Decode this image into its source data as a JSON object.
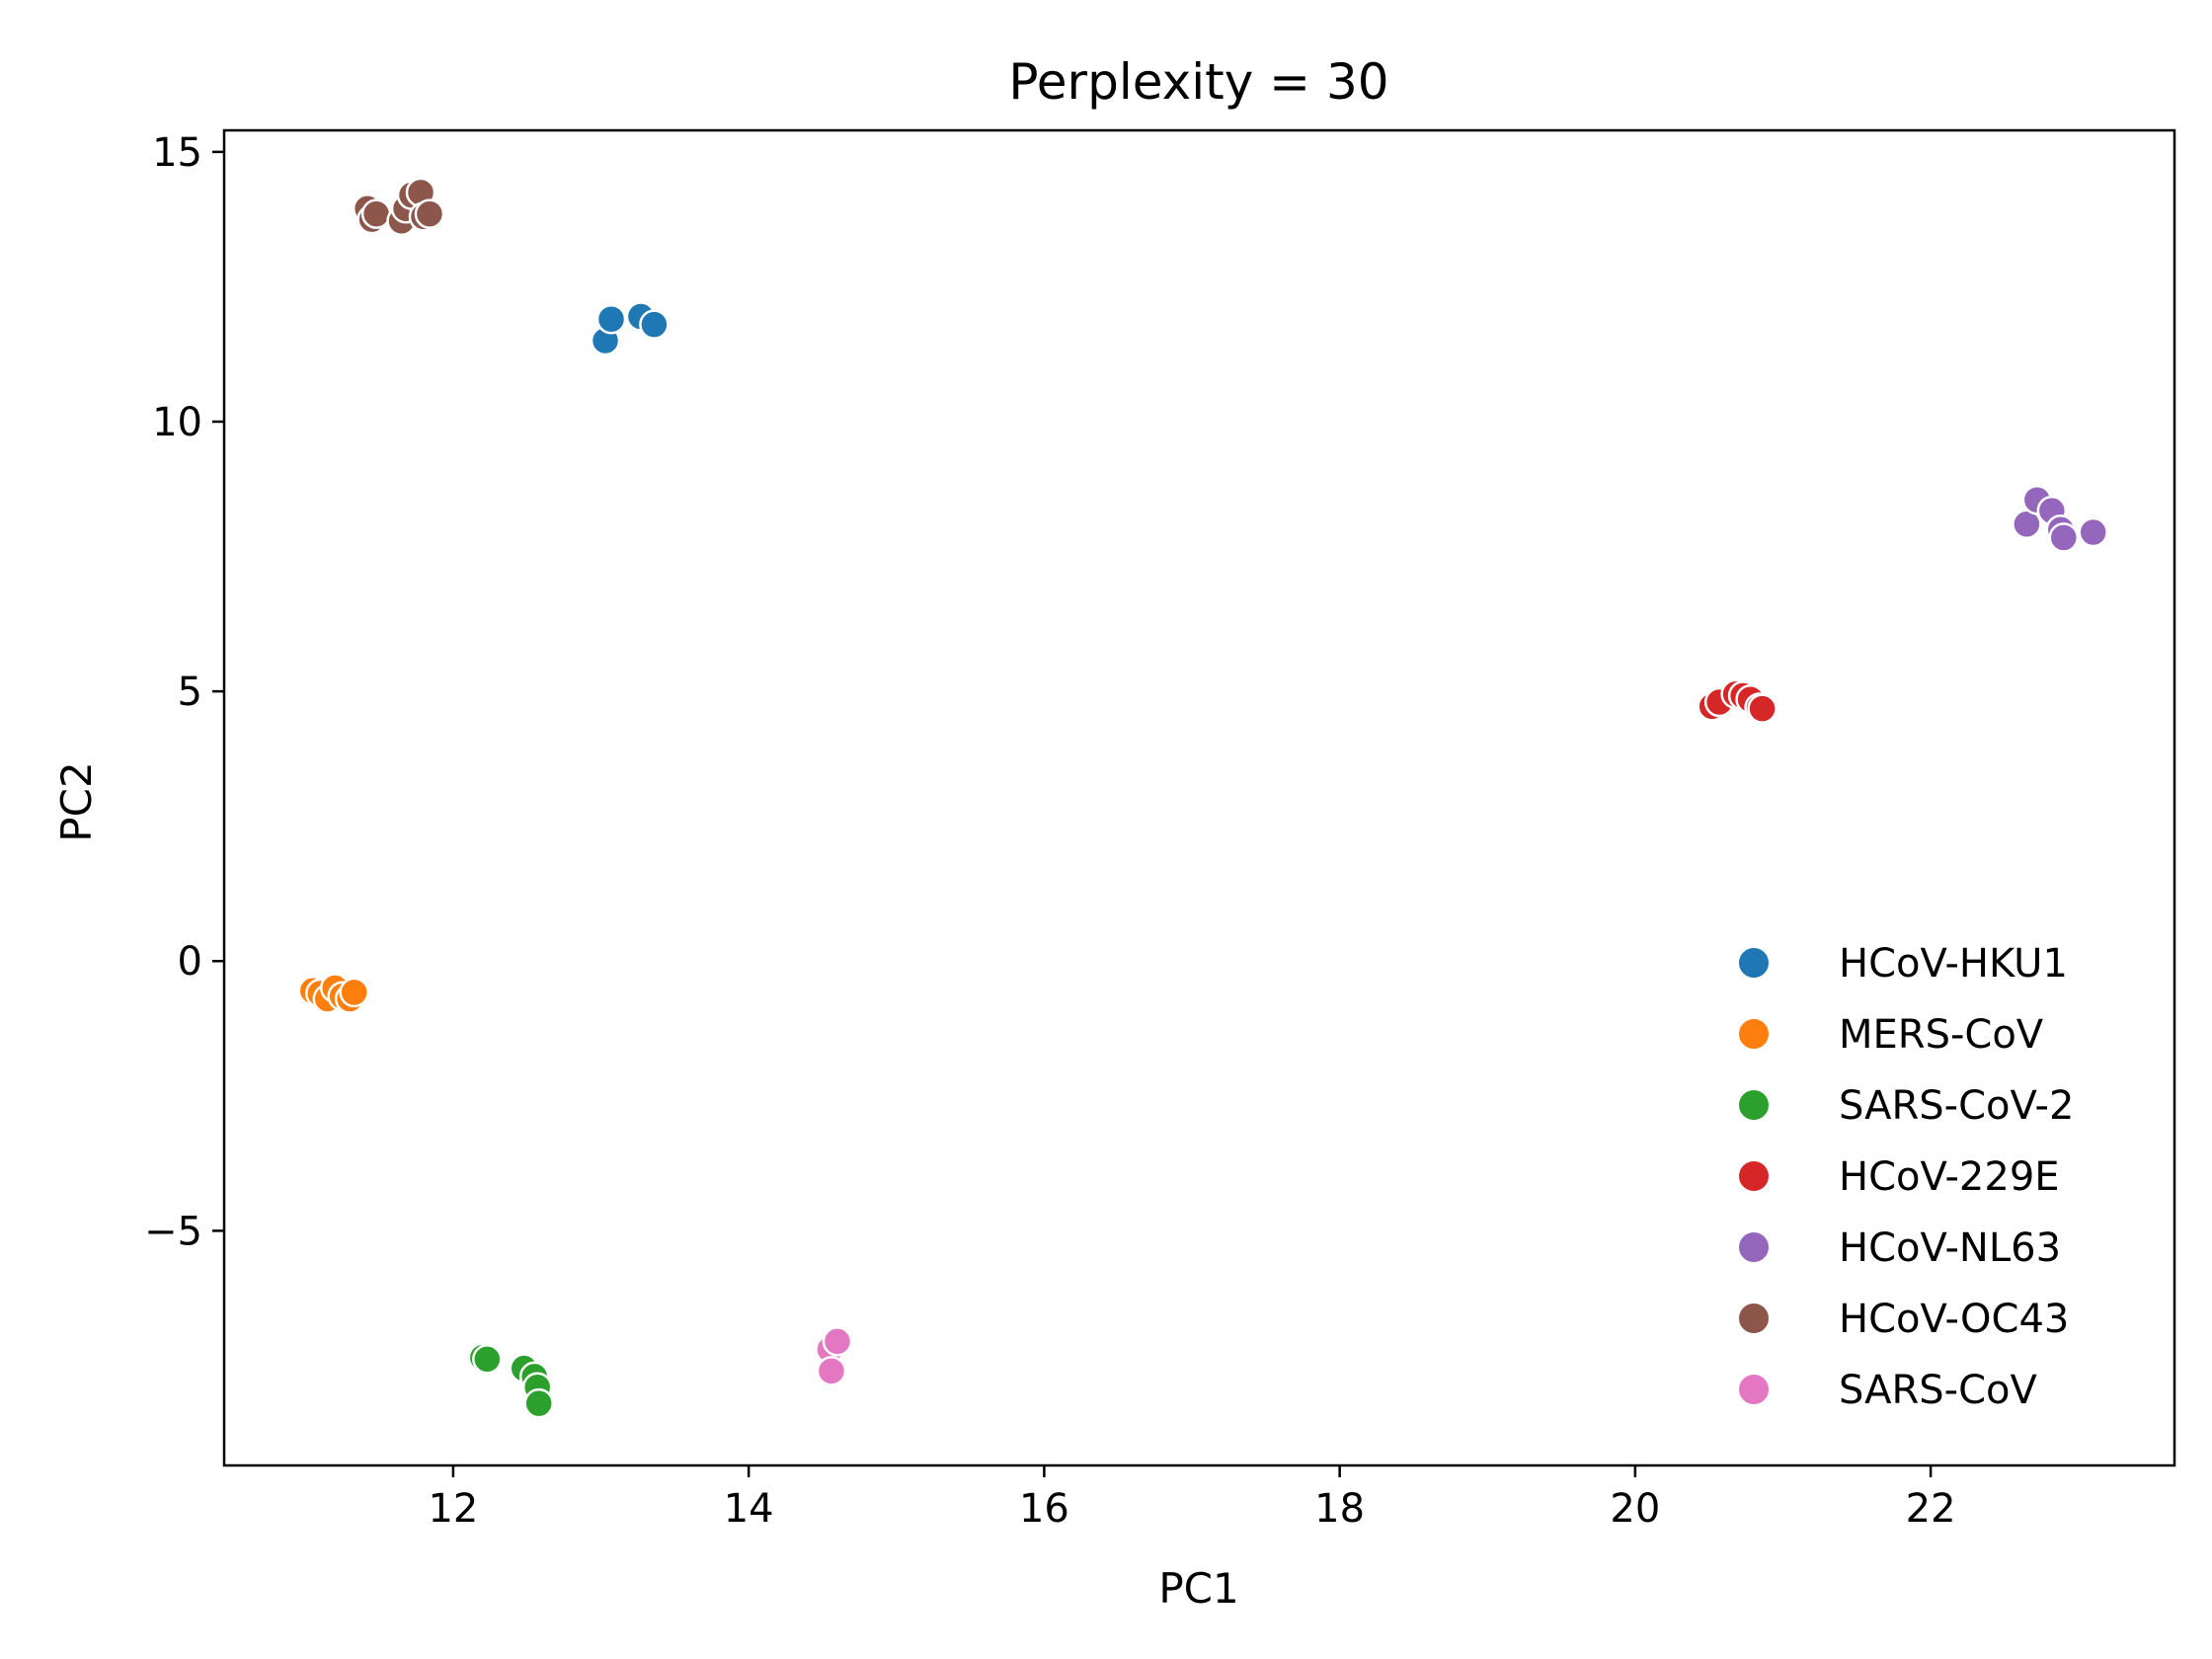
{
  "chart_data": {
    "type": "scatter",
    "title": "Perplexity = 30",
    "xlabel": "PC1",
    "ylabel": "PC2",
    "xlim": [
      10.45,
      23.65
    ],
    "ylim": [
      -9.35,
      15.4
    ],
    "xticks": [
      12,
      14,
      16,
      18,
      20,
      22
    ],
    "yticks": [
      15,
      10,
      5,
      0,
      -5
    ],
    "xtick_labels": [
      "12",
      "14",
      "16",
      "18",
      "20",
      "22"
    ],
    "ytick_labels": [
      "15",
      "10",
      "5",
      "0",
      "−5"
    ],
    "grid": false,
    "legend_position": "lower-right",
    "series": [
      {
        "name": "HCoV-HKU1",
        "color": "#1f77b4",
        "x": [
          13.03,
          13.07,
          13.27,
          13.36
        ],
        "y": [
          11.5,
          11.9,
          11.95,
          11.8
        ]
      },
      {
        "name": "MERS-CoV",
        "color": "#ff7f0e",
        "x": [
          11.05,
          11.1,
          11.15,
          11.2,
          11.25,
          11.3,
          11.33
        ],
        "y": [
          -0.55,
          -0.6,
          -0.7,
          -0.5,
          -0.65,
          -0.7,
          -0.58
        ]
      },
      {
        "name": "SARS-CoV-2",
        "color": "#2ca02c",
        "x": [
          12.2,
          12.23,
          12.48,
          12.55,
          12.57,
          12.58
        ],
        "y": [
          -7.35,
          -7.38,
          -7.55,
          -7.7,
          -7.9,
          -8.2
        ]
      },
      {
        "name": "HCoV-229E",
        "color": "#d62728",
        "x": [
          20.52,
          20.57,
          20.68,
          20.73,
          20.78,
          20.84,
          20.86
        ],
        "y": [
          4.72,
          4.8,
          4.95,
          4.92,
          4.85,
          4.7,
          4.68
        ]
      },
      {
        "name": "HCoV-NL63",
        "color": "#9467bd",
        "x": [
          22.65,
          22.72,
          22.82,
          22.88,
          22.9,
          23.1
        ],
        "y": [
          8.1,
          8.55,
          8.35,
          8.0,
          7.85,
          7.95
        ]
      },
      {
        "name": "HCoV-OC43",
        "color": "#8c564b",
        "x": [
          11.42,
          11.45,
          11.48,
          11.65,
          11.68,
          11.72,
          11.78,
          11.8,
          11.84
        ],
        "y": [
          13.95,
          13.75,
          13.85,
          13.72,
          13.95,
          14.2,
          14.25,
          13.8,
          13.85
        ]
      },
      {
        "name": "SARS-CoV",
        "color": "#e377c2",
        "x": [
          14.55,
          14.6,
          14.56
        ],
        "y": [
          -7.2,
          -7.05,
          -7.6
        ]
      }
    ]
  }
}
